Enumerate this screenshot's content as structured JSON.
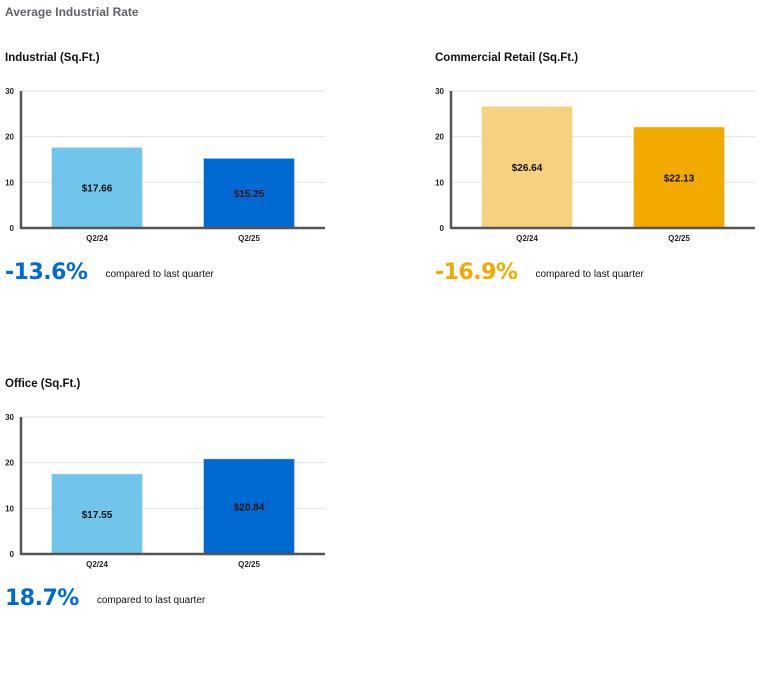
{
  "page_title": "Average Industrial Rate",
  "colors": {
    "blue_light": "#72c5ea",
    "blue_dark": "#0069d2",
    "gold_light": "#f6d17f",
    "gold_dark": "#f2a900",
    "pct_blue": "#0069d2",
    "pct_gold": "#f2a900"
  },
  "chart_data": [
    {
      "type": "bar",
      "title": "Industrial (Sq.Ft.)",
      "categories": [
        "Q2/24",
        "Q2/25"
      ],
      "values": [
        17.66,
        15.25
      ],
      "labels": [
        "$17.66",
        "$15.25"
      ],
      "bar_colors": [
        "#72c5ea",
        "#0069d2"
      ],
      "ylim": [
        0,
        30
      ],
      "yticks": [
        "0",
        "10",
        "20",
        "30"
      ],
      "grid": true,
      "change": "-13.6%",
      "change_color": "#0069d2",
      "change_text": "compared to last quarter"
    },
    {
      "type": "bar",
      "title": "Commercial Retail (Sq.Ft.)",
      "categories": [
        "Q2/24",
        "Q2/25"
      ],
      "values": [
        26.64,
        22.13
      ],
      "labels": [
        "$26.64",
        "$22.13"
      ],
      "bar_colors": [
        "#f6d17f",
        "#f2a900"
      ],
      "ylim": [
        0,
        30
      ],
      "yticks": [
        "0",
        "10",
        "20",
        "30"
      ],
      "grid": true,
      "change": "-16.9%",
      "change_color": "#f2a900",
      "change_text": "compared to last quarter"
    },
    {
      "type": "bar",
      "title": "Office (Sq.Ft.)",
      "categories": [
        "Q2/24",
        "Q2/25"
      ],
      "values": [
        17.55,
        20.84
      ],
      "labels": [
        "$17.55",
        "$20.84"
      ],
      "bar_colors": [
        "#72c5ea",
        "#0069d2"
      ],
      "ylim": [
        0,
        30
      ],
      "yticks": [
        "0",
        "10",
        "20",
        "30"
      ],
      "grid": true,
      "change": "18.7%",
      "change_color": "#0069d2",
      "change_text": "compared to last quarter"
    }
  ]
}
